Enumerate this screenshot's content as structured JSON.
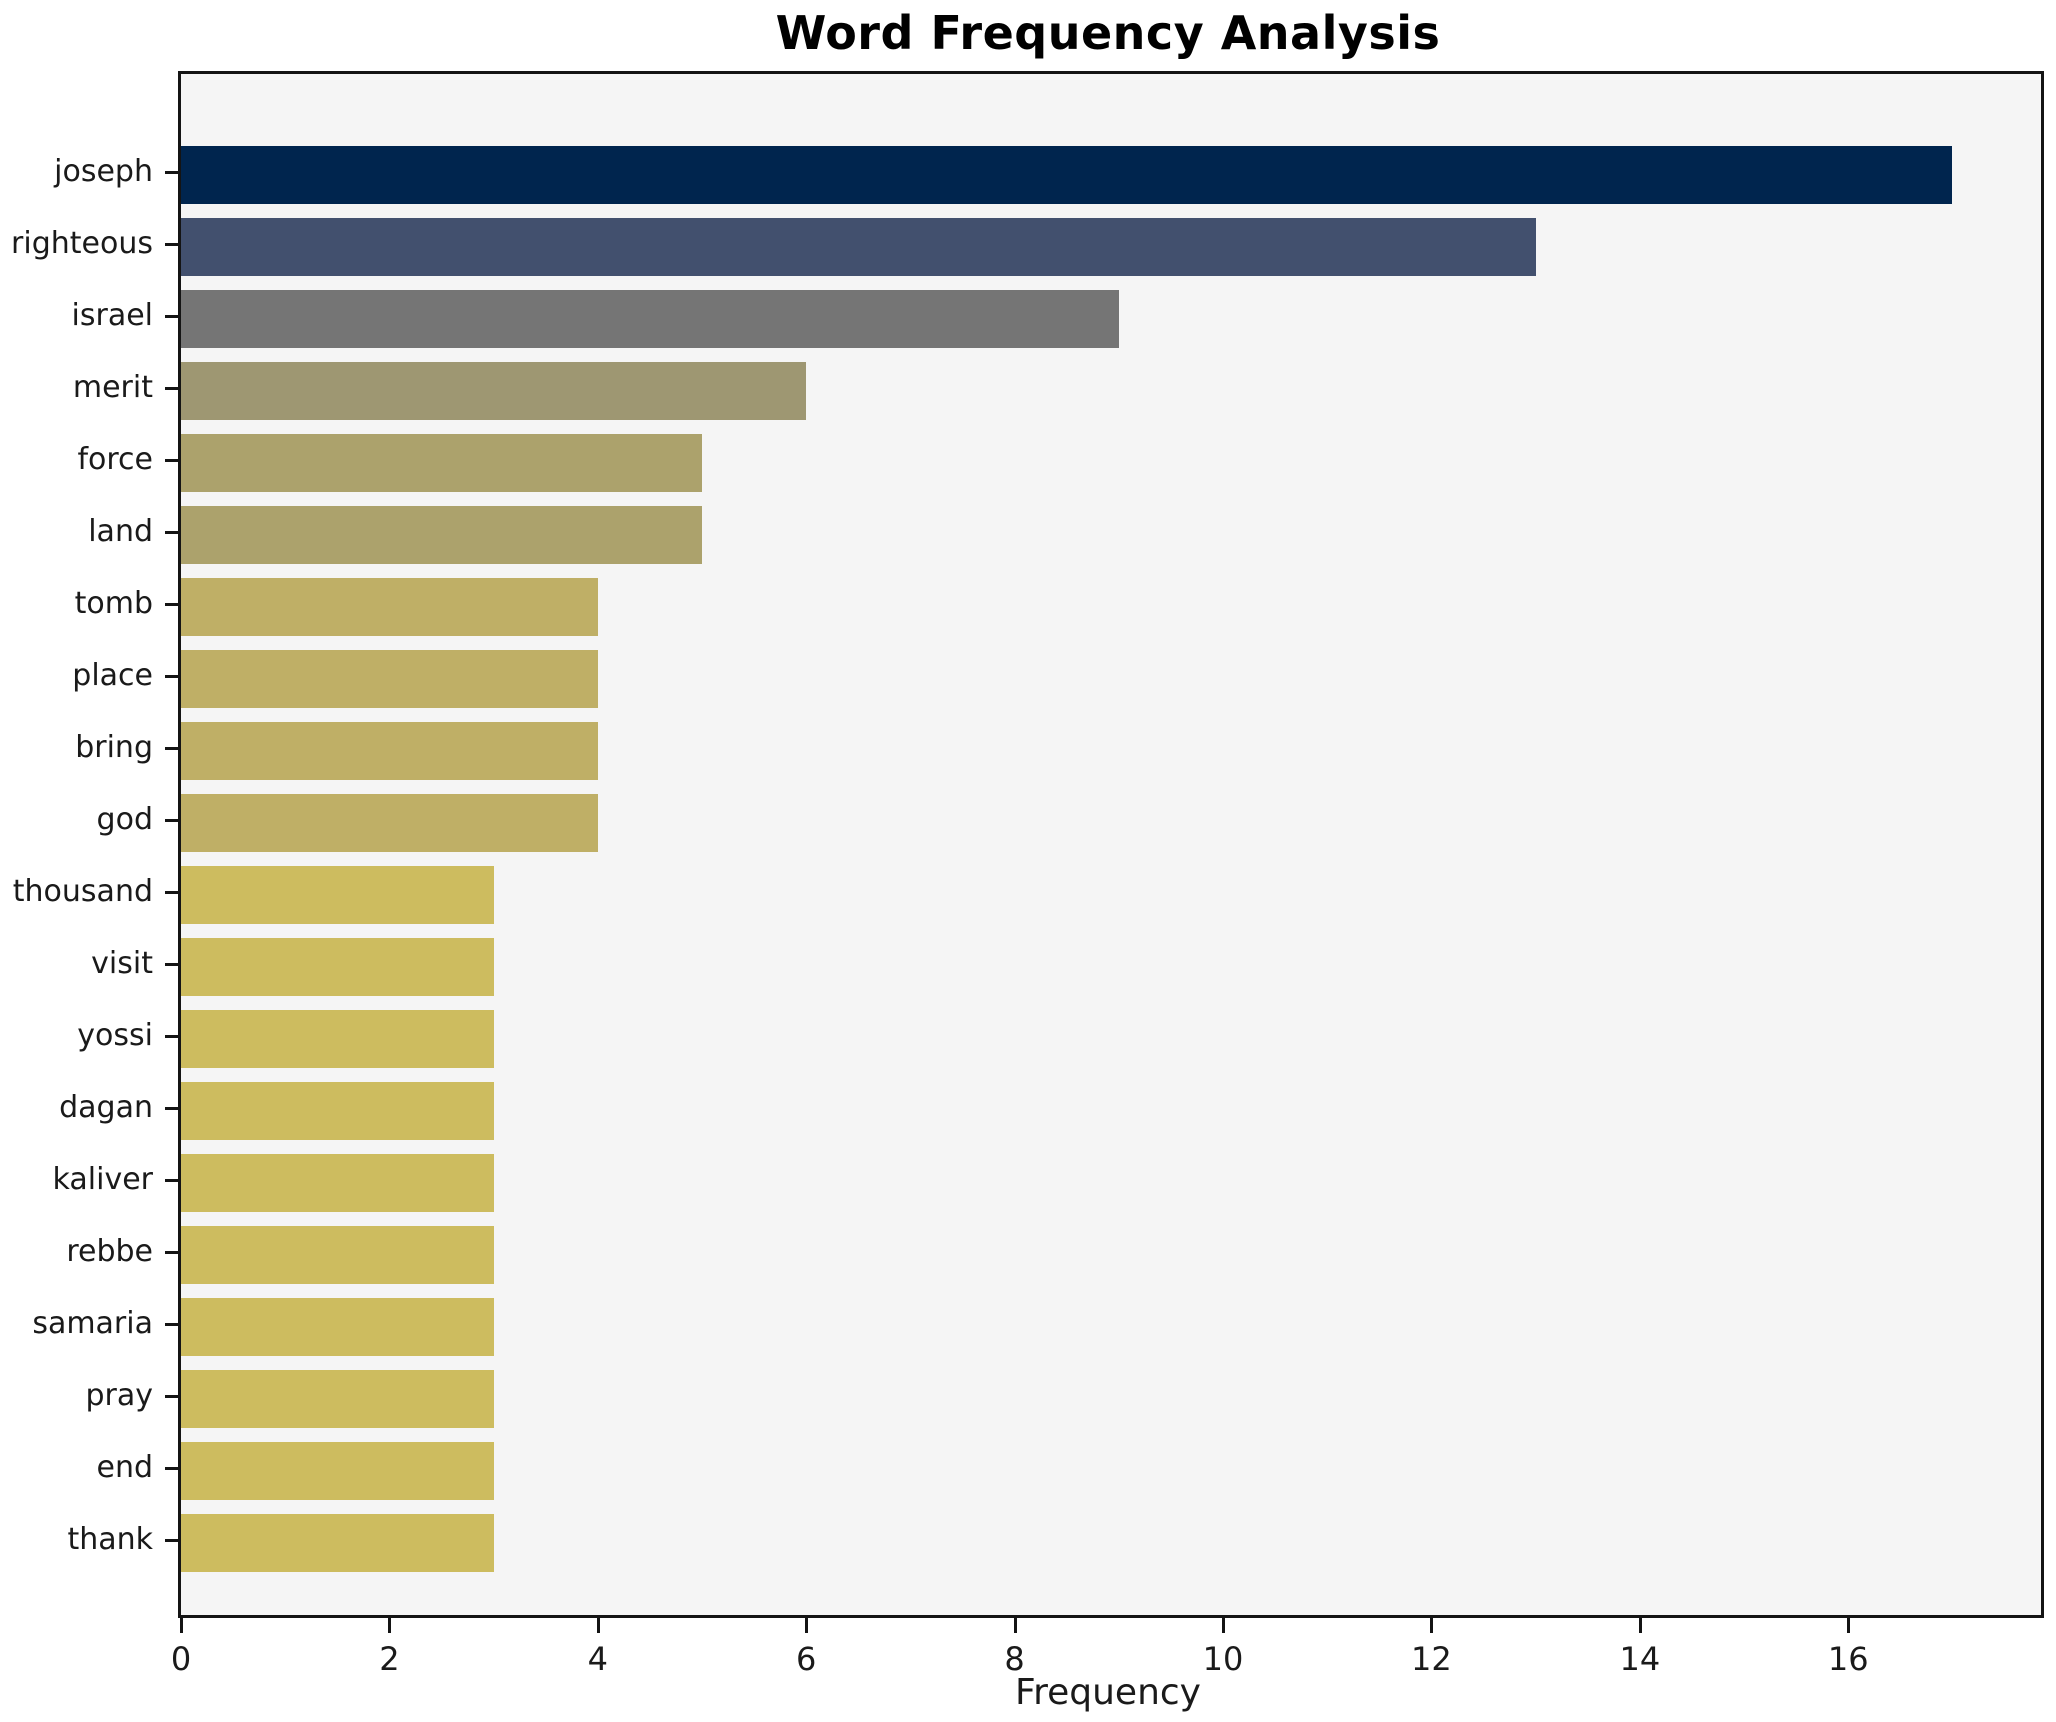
{
  "chart_data": {
    "type": "bar",
    "orientation": "horizontal",
    "title": "Word Frequency Analysis",
    "xlabel": "Frequency",
    "ylabel": "",
    "categories": [
      "joseph",
      "righteous",
      "israel",
      "merit",
      "force",
      "land",
      "tomb",
      "place",
      "bring",
      "god",
      "thousand",
      "visit",
      "yossi",
      "dagan",
      "kaliver",
      "rebbe",
      "samaria",
      "pray",
      "end",
      "thank"
    ],
    "values": [
      17,
      13,
      9,
      6,
      5,
      5,
      4,
      4,
      4,
      4,
      3,
      3,
      3,
      3,
      3,
      3,
      3,
      3,
      3,
      3
    ],
    "bar_colors": [
      "#00254e",
      "#42506e",
      "#757575",
      "#9e9772",
      "#aca26c",
      "#aca26c",
      "#bfaf66",
      "#bfaf66",
      "#bfaf66",
      "#bfaf66",
      "#cdbc5f",
      "#cdbc5f",
      "#cdbc5f",
      "#cdbc5f",
      "#cdbc5f",
      "#cdbc5f",
      "#cdbc5f",
      "#cdbc5f",
      "#cdbc5f",
      "#cdbc5f"
    ],
    "xticks": [
      0,
      2,
      4,
      6,
      8,
      10,
      12,
      14,
      16
    ],
    "xlim": [
      0,
      17.85
    ],
    "grid": false,
    "legend_position": "none",
    "plot_background": "#f5f5f5",
    "figure_background": "#ffffff",
    "spine_color": "#141414",
    "title_color": "#000000",
    "tick_label_color": "#1a1a1a"
  }
}
